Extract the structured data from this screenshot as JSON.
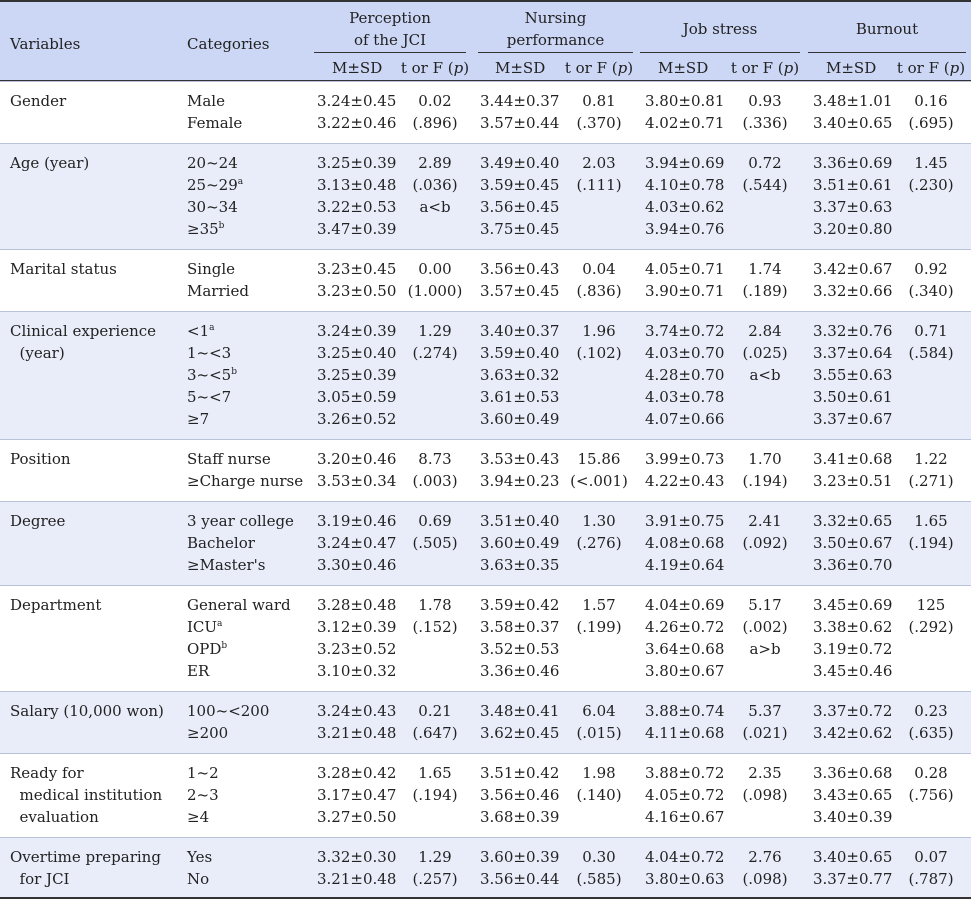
{
  "header": {
    "variables": "Variables",
    "categories": "Categories",
    "groups": [
      "Perception\nof the JCI",
      "Nursing\nperformance",
      "Job stress",
      "Burnout"
    ],
    "sub_ms": "M±SD",
    "sub_stat": "t or F (p)"
  },
  "rows": [
    {
      "variable": [
        "Gender"
      ],
      "categories": [
        "Male",
        "Female"
      ],
      "cat_sup": [
        "",
        ""
      ],
      "groups": [
        {
          "ms": [
            "3.24±0.45",
            "3.22±0.46"
          ],
          "stat": [
            "0.02",
            "(.896)"
          ]
        },
        {
          "ms": [
            "3.44±0.37",
            "3.57±0.44"
          ],
          "stat": [
            "0.81",
            "(.370)"
          ]
        },
        {
          "ms": [
            "3.80±0.81",
            "4.02±0.71"
          ],
          "stat": [
            "0.93",
            "(.336)"
          ]
        },
        {
          "ms": [
            "3.48±1.01",
            "3.40±0.65"
          ],
          "stat": [
            "0.16",
            "(.695)"
          ]
        }
      ]
    },
    {
      "variable": [
        "Age (year)"
      ],
      "categories": [
        "20~24",
        "25~29",
        "30~34",
        "≥35"
      ],
      "cat_sup": [
        "",
        "a",
        "",
        "b"
      ],
      "groups": [
        {
          "ms": [
            "3.25±0.39",
            "3.13±0.48",
            "3.22±0.53",
            "3.47±0.39"
          ],
          "stat": [
            "2.89",
            "(.036)",
            "a<b"
          ]
        },
        {
          "ms": [
            "3.49±0.40",
            "3.59±0.45",
            "3.56±0.45",
            "3.75±0.45"
          ],
          "stat": [
            "2.03",
            "(.111)"
          ]
        },
        {
          "ms": [
            "3.94±0.69",
            "4.10±0.78",
            "4.03±0.62",
            "3.94±0.76"
          ],
          "stat": [
            "0.72",
            "(.544)"
          ]
        },
        {
          "ms": [
            "3.36±0.69",
            "3.51±0.61",
            "3.37±0.63",
            "3.20±0.80"
          ],
          "stat": [
            "1.45",
            "(.230)"
          ]
        }
      ]
    },
    {
      "variable": [
        "Marital status"
      ],
      "categories": [
        "Single",
        "Married"
      ],
      "cat_sup": [
        "",
        ""
      ],
      "groups": [
        {
          "ms": [
            "3.23±0.45",
            "3.23±0.50"
          ],
          "stat": [
            "0.00",
            "(1.000)"
          ]
        },
        {
          "ms": [
            "3.56±0.43",
            "3.57±0.45"
          ],
          "stat": [
            "0.04",
            "(.836)"
          ]
        },
        {
          "ms": [
            "4.05±0.71",
            "3.90±0.71"
          ],
          "stat": [
            "1.74",
            "(.189)"
          ]
        },
        {
          "ms": [
            "3.42±0.67",
            "3.32±0.66"
          ],
          "stat": [
            "0.92",
            "(.340)"
          ]
        }
      ]
    },
    {
      "variable": [
        "Clinical experience",
        "  (year)"
      ],
      "categories": [
        "<1",
        "1~<3",
        "3~<5",
        "5~<7",
        "≥7"
      ],
      "cat_sup": [
        "a",
        "",
        "b",
        "",
        ""
      ],
      "groups": [
        {
          "ms": [
            "3.24±0.39",
            "3.25±0.40",
            "3.25±0.39",
            "3.05±0.59",
            "3.26±0.52"
          ],
          "stat": [
            "1.29",
            "(.274)"
          ]
        },
        {
          "ms": [
            "3.40±0.37",
            "3.59±0.40",
            "3.63±0.32",
            "3.61±0.53",
            "3.60±0.49"
          ],
          "stat": [
            "1.96",
            "(.102)"
          ]
        },
        {
          "ms": [
            "3.74±0.72",
            "4.03±0.70",
            "4.28±0.70",
            "4.03±0.78",
            "4.07±0.66"
          ],
          "stat": [
            "2.84",
            "(.025)",
            "a<b"
          ]
        },
        {
          "ms": [
            "3.32±0.76",
            "3.37±0.64",
            "3.55±0.63",
            "3.50±0.61",
            "3.37±0.67"
          ],
          "stat": [
            "0.71",
            "(.584)"
          ]
        }
      ]
    },
    {
      "variable": [
        "Position"
      ],
      "categories": [
        "Staff nurse",
        "≥Charge nurse"
      ],
      "cat_sup": [
        "",
        ""
      ],
      "groups": [
        {
          "ms": [
            "3.20±0.46",
            "3.53±0.34"
          ],
          "stat": [
            "8.73",
            "(.003)"
          ]
        },
        {
          "ms": [
            "3.53±0.43",
            "3.94±0.23"
          ],
          "stat": [
            "15.86",
            "(<.001)"
          ]
        },
        {
          "ms": [
            "3.99±0.73",
            "4.22±0.43"
          ],
          "stat": [
            "1.70",
            "(.194)"
          ]
        },
        {
          "ms": [
            "3.41±0.68",
            "3.23±0.51"
          ],
          "stat": [
            "1.22",
            "(.271)"
          ]
        }
      ]
    },
    {
      "variable": [
        "Degree"
      ],
      "categories": [
        "3 year college",
        "Bachelor",
        "≥Master's"
      ],
      "cat_sup": [
        "",
        "",
        ""
      ],
      "groups": [
        {
          "ms": [
            "3.19±0.46",
            "3.24±0.47",
            "3.30±0.46"
          ],
          "stat": [
            "0.69",
            "(.505)"
          ]
        },
        {
          "ms": [
            "3.51±0.40",
            "3.60±0.49",
            "3.63±0.35"
          ],
          "stat": [
            "1.30",
            "(.276)"
          ]
        },
        {
          "ms": [
            "3.91±0.75",
            "4.08±0.68",
            "4.19±0.64"
          ],
          "stat": [
            "2.41",
            "(.092)"
          ]
        },
        {
          "ms": [
            "3.32±0.65",
            "3.50±0.67",
            "3.36±0.70"
          ],
          "stat": [
            "1.65",
            "(.194)"
          ]
        }
      ]
    },
    {
      "variable": [
        "Department"
      ],
      "categories": [
        "General ward",
        "ICU",
        "OPD",
        "ER"
      ],
      "cat_sup": [
        "",
        "a",
        "b",
        ""
      ],
      "groups": [
        {
          "ms": [
            "3.28±0.48",
            "3.12±0.39",
            "3.23±0.52",
            "3.10±0.32"
          ],
          "stat": [
            "1.78",
            "(.152)"
          ]
        },
        {
          "ms": [
            "3.59±0.42",
            "3.58±0.37",
            "3.52±0.53",
            "3.36±0.46"
          ],
          "stat": [
            "1.57",
            "(.199)"
          ]
        },
        {
          "ms": [
            "4.04±0.69",
            "4.26±0.72",
            "3.64±0.68",
            "3.80±0.67"
          ],
          "stat": [
            "5.17",
            "(.002)",
            "a>b"
          ]
        },
        {
          "ms": [
            "3.45±0.69",
            "3.38±0.62",
            "3.19±0.72",
            "3.45±0.46"
          ],
          "stat": [
            "125",
            "(.292)"
          ]
        }
      ]
    },
    {
      "variable": [
        "Salary (10,000 won)"
      ],
      "categories": [
        "100~<200",
        "≥200"
      ],
      "cat_sup": [
        "",
        ""
      ],
      "groups": [
        {
          "ms": [
            "3.24±0.43",
            "3.21±0.48"
          ],
          "stat": [
            "0.21",
            "(.647)"
          ]
        },
        {
          "ms": [
            "3.48±0.41",
            "3.62±0.45"
          ],
          "stat": [
            "6.04",
            "(.015)"
          ]
        },
        {
          "ms": [
            "3.88±0.74",
            "4.11±0.68"
          ],
          "stat": [
            "5.37",
            "(.021)"
          ]
        },
        {
          "ms": [
            "3.37±0.72",
            "3.42±0.62"
          ],
          "stat": [
            "0.23",
            "(.635)"
          ]
        }
      ]
    },
    {
      "variable": [
        "Ready for",
        "  medical institution",
        "  evaluation"
      ],
      "categories": [
        "1~2",
        "2~3",
        "≥4"
      ],
      "cat_sup": [
        "",
        "",
        ""
      ],
      "groups": [
        {
          "ms": [
            "3.28±0.42",
            "3.17±0.47",
            "3.27±0.50"
          ],
          "stat": [
            "1.65",
            "(.194)"
          ]
        },
        {
          "ms": [
            "3.51±0.42",
            "3.56±0.46",
            "3.68±0.39"
          ],
          "stat": [
            "1.98",
            "(.140)"
          ]
        },
        {
          "ms": [
            "3.88±0.72",
            "4.05±0.72",
            "4.16±0.67"
          ],
          "stat": [
            "2.35",
            "(.098)"
          ]
        },
        {
          "ms": [
            "3.36±0.68",
            "3.43±0.65",
            "3.40±0.39"
          ],
          "stat": [
            "0.28",
            "(.756)"
          ]
        }
      ]
    },
    {
      "variable": [
        "Overtime preparing",
        "  for JCI"
      ],
      "categories": [
        "Yes",
        "No"
      ],
      "cat_sup": [
        "",
        ""
      ],
      "groups": [
        {
          "ms": [
            "3.32±0.30",
            "3.21±0.48"
          ],
          "stat": [
            "1.29",
            "(.257)"
          ]
        },
        {
          "ms": [
            "3.60±0.39",
            "3.56±0.44"
          ],
          "stat": [
            "0.30",
            "(.585)"
          ]
        },
        {
          "ms": [
            "4.04±0.72",
            "3.80±0.63"
          ],
          "stat": [
            "2.76",
            "(.098)"
          ]
        },
        {
          "ms": [
            "3.40±0.65",
            "3.37±0.77"
          ],
          "stat": [
            "0.07",
            "(.787)"
          ]
        }
      ]
    }
  ]
}
